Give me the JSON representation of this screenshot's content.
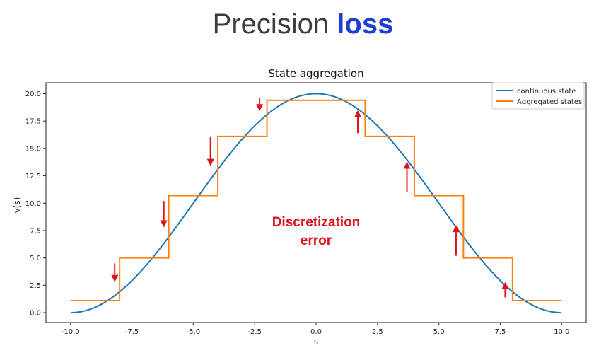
{
  "slide": {
    "title_main": "Precision ",
    "title_highlight": "loss",
    "highlight_color": "#1f3fd0"
  },
  "chart_data": {
    "type": "line",
    "title": "State aggregation",
    "xlabel": "s",
    "ylabel": "v(s)",
    "xlim": [
      -11,
      11
    ],
    "ylim": [
      -0.9,
      21
    ],
    "xticks": [
      -10.0,
      -7.5,
      -5.0,
      -2.5,
      0.0,
      2.5,
      5.0,
      7.5,
      10.0
    ],
    "yticks": [
      0.0,
      2.5,
      5.0,
      7.5,
      10.0,
      12.5,
      15.0,
      17.5,
      20.0
    ],
    "grid": false,
    "legend_position": "top-right",
    "series": [
      {
        "name": "continuous state",
        "color": "#1f77b4",
        "function": "v(s) = 10 * (1 + cos(pi * s / 10))",
        "x": [
          -10,
          -9,
          -8,
          -7,
          -6,
          -5,
          -4,
          -3,
          -2,
          -1,
          0,
          1,
          2,
          3,
          4,
          5,
          6,
          7,
          8,
          9,
          10
        ],
        "y": [
          0.0,
          0.49,
          1.91,
          4.12,
          6.91,
          10.0,
          13.09,
          15.88,
          18.09,
          19.51,
          20.0,
          19.51,
          18.09,
          15.88,
          13.09,
          10.0,
          6.91,
          4.12,
          1.91,
          0.49,
          0.0
        ]
      },
      {
        "name": "Aggregated states",
        "color": "#ff7f0e",
        "step": true,
        "bin_edges": [
          -10,
          -8,
          -6,
          -4,
          -2,
          2,
          4,
          6,
          8,
          10
        ],
        "values": [
          1.1,
          5.0,
          10.7,
          16.1,
          19.4,
          16.1,
          10.7,
          5.0,
          1.1
        ]
      }
    ],
    "annotations": {
      "text_lines": [
        "Discretization",
        "error"
      ],
      "arrow_color": "#e0101a",
      "arrows": [
        {
          "x": -8.2,
          "from": 4.5,
          "to": 2.8
        },
        {
          "x": -6.2,
          "from": 10.2,
          "to": 7.8
        },
        {
          "x": -4.3,
          "from": 16.1,
          "to": 13.4
        },
        {
          "x": -2.3,
          "from": 19.6,
          "to": 18.4
        },
        {
          "x": 1.7,
          "from": 16.4,
          "to": 18.5
        },
        {
          "x": 3.7,
          "from": 11.0,
          "to": 13.8
        },
        {
          "x": 5.7,
          "from": 5.2,
          "to": 8.0
        },
        {
          "x": 7.7,
          "from": 1.4,
          "to": 2.8
        }
      ]
    }
  }
}
